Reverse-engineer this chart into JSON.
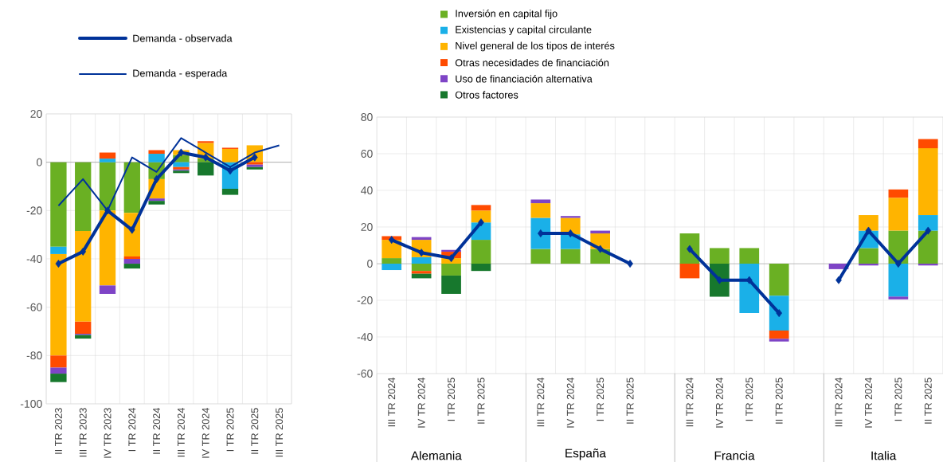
{
  "chart_data": [
    {
      "type": "bar",
      "stacked": true,
      "grid": true,
      "legend": "top",
      "categories": [
        "II TR 2023",
        "III TR 2023",
        "IV TR 2023",
        "I TR 2024",
        "II TR 2024",
        "III TR 2024",
        "IV TR 2024",
        "I TR 2025",
        "II TR 2025",
        "III TR 2025"
      ],
      "ylim": [
        -100,
        20
      ],
      "yticks": [
        -100,
        -80,
        -60,
        -40,
        -20,
        0,
        20
      ],
      "series": [
        {
          "color": "#6ab023",
          "values": [
            -35,
            -28.5,
            -20,
            -21,
            -7,
            3,
            1.5,
            null,
            null,
            null
          ]
        },
        {
          "color": "#1ab0e8",
          "values": [
            -3,
            null,
            1.5,
            null,
            3.5,
            -2,
            null,
            -11,
            null,
            null
          ]
        },
        {
          "color": "#ffb400",
          "values": [
            -42,
            -37.5,
            -31,
            -18,
            -8,
            2,
            6.5,
            5.5,
            7,
            null
          ]
        },
        {
          "color": "#ff4b00",
          "values": [
            -5,
            -5,
            2.5,
            -1,
            1.5,
            -1,
            0.7,
            0.5,
            -1,
            null
          ]
        },
        {
          "color": "#7e44c6",
          "values": [
            -2.5,
            -0.5,
            -3.5,
            -2,
            -1,
            -0.5,
            null,
            null,
            -1,
            null
          ]
        },
        {
          "color": "#17782d",
          "values": [
            -3.5,
            -1.5,
            null,
            -2,
            -1.5,
            -1,
            -5.5,
            -2.5,
            -1,
            null
          ]
        },
        {
          "type": "line",
          "name": "Demanda - observada",
          "color": "#003299",
          "marker": "diamond",
          "values": [
            -42,
            -37,
            -20,
            -28,
            -7,
            4,
            2,
            -3.5,
            2,
            null
          ]
        },
        {
          "type": "line",
          "name": "Demanda - esperada",
          "color": "#003299",
          "values": [
            -18,
            -7,
            -20,
            2,
            -4,
            10,
            4,
            -2,
            4,
            7
          ]
        }
      ]
    },
    {
      "type": "bar",
      "stacked": true,
      "grid": true,
      "legend": "top",
      "categories": [
        "III TR 2024",
        "IV TR 2024",
        "I TR 2025",
        "II TR 2025",
        null,
        "III TR 2024",
        "IV TR 2024",
        "I TR 2025",
        "II TR 2025",
        null,
        "III TR 2024",
        "IV TR 2024",
        "I TR 2025",
        "II TR 2025",
        null,
        "III TR 2024",
        "IV TR 2024",
        "I TR 2025",
        "II TR 2025"
      ],
      "ylim": [
        -60,
        80
      ],
      "yticks": [
        -60,
        -40,
        -20,
        0,
        20,
        40,
        60,
        80
      ],
      "annotations": [
        "Alemania",
        "España",
        "Francia",
        "Italia"
      ],
      "series": [
        {
          "name": "Inversión en capital fijo",
          "color": "#6ab023",
          "values": [
            3,
            -4,
            -6.5,
            13,
            null,
            8,
            8,
            8,
            null,
            null,
            16.5,
            8.5,
            8.5,
            -17.5,
            null,
            null,
            8.5,
            18,
            18
          ]
        },
        {
          "name": "Existencias y capital circulante",
          "color": "#1ab0e8",
          "values": [
            -3.5,
            3.5,
            null,
            9.5,
            null,
            17,
            8,
            null,
            null,
            null,
            null,
            null,
            -27,
            -19,
            null,
            null,
            9.5,
            -18,
            8.5
          ]
        },
        {
          "name": "Nivel general de los tipos de interés",
          "color": "#ffb400",
          "values": [
            10,
            9.5,
            3,
            6.5,
            null,
            8,
            9,
            8.5,
            null,
            null,
            null,
            null,
            null,
            null,
            null,
            null,
            8.5,
            18,
            36.5
          ]
        },
        {
          "name": "Otras necesidades de financiación",
          "color": "#ff4b00",
          "values": [
            2,
            -1.5,
            3.5,
            3,
            null,
            null,
            null,
            null,
            null,
            null,
            -8,
            null,
            null,
            -4.5,
            null,
            null,
            null,
            4.5,
            5
          ]
        },
        {
          "name": "Uso de financiación alternativa",
          "color": "#7e44c6",
          "values": [
            null,
            1.5,
            1,
            null,
            null,
            2,
            1,
            1.5,
            null,
            null,
            null,
            null,
            null,
            -1.5,
            null,
            -3,
            -1,
            -1.5,
            -1
          ]
        },
        {
          "name": "Otros factores",
          "color": "#17782d",
          "values": [
            null,
            -2.5,
            -10,
            -4,
            null,
            null,
            null,
            null,
            null,
            null,
            null,
            -18,
            null,
            null,
            null,
            null,
            null,
            null,
            null
          ]
        },
        {
          "type": "line",
          "color": "#003299",
          "marker": "diamond",
          "values": [
            13,
            6,
            3,
            22.5,
            null,
            16.5,
            16.5,
            8,
            0,
            null,
            8,
            -9,
            -9,
            -27,
            null,
            -9,
            18,
            0,
            18
          ]
        }
      ]
    }
  ]
}
